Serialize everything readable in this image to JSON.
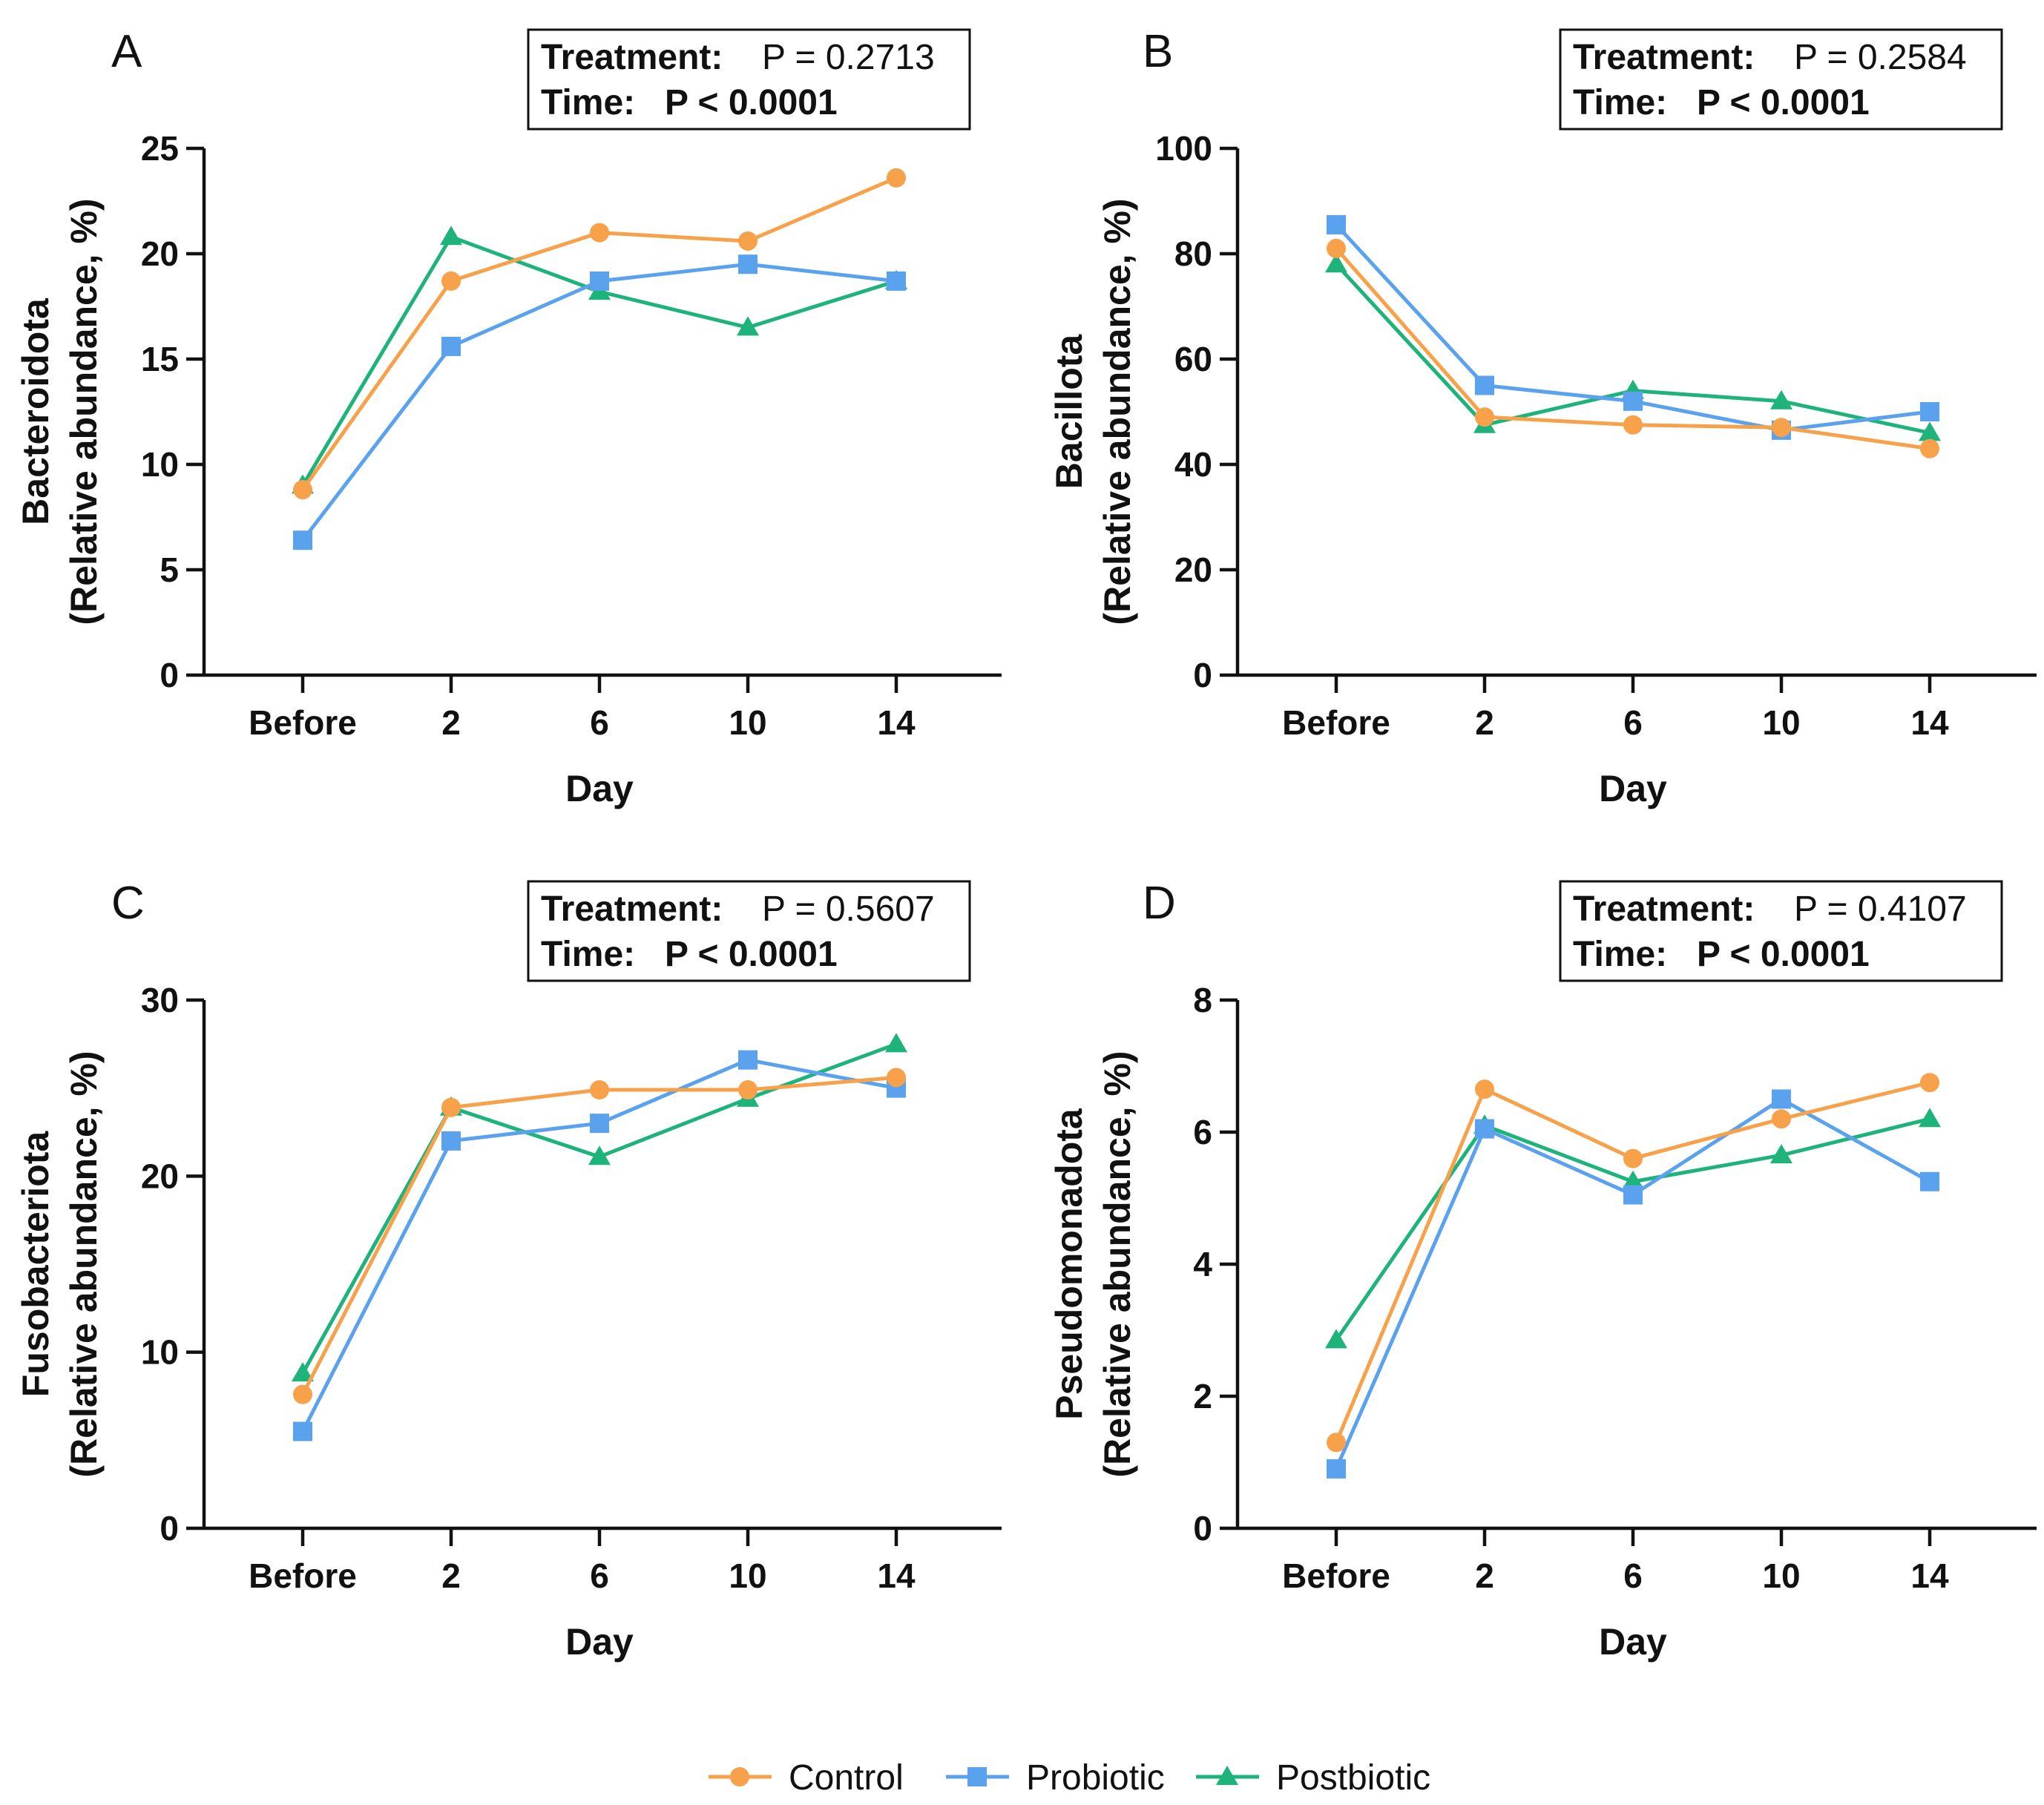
{
  "colors": {
    "Control": "#F7A14A",
    "Probiotic": "#5BA2EE",
    "Postbiotic": "#1DB37B"
  },
  "legend": {
    "items": [
      {
        "name": "Control",
        "marker": "circle"
      },
      {
        "name": "Probiotic",
        "marker": "square"
      },
      {
        "name": "Postbiotic",
        "marker": "triangle"
      }
    ]
  },
  "chart_data": [
    {
      "panel": "A",
      "type": "line",
      "categories": [
        "Before",
        "2",
        "6",
        "10",
        "14"
      ],
      "xlabel": "Day",
      "ylabel": "Bacteroidota",
      "ylabel2": "(Relative abundance,  %)",
      "ylim": [
        0,
        25
      ],
      "yticks": [
        0,
        5,
        10,
        15,
        20,
        25
      ],
      "stats": {
        "treatment_label": "Treatment:",
        "treatment_p": "P = 0.2713",
        "time_label": "Time:",
        "time_p": "P < 0.0001"
      },
      "series": [
        {
          "name": "Control",
          "values": [
            8.8,
            18.7,
            21.0,
            20.6,
            23.6
          ]
        },
        {
          "name": "Probiotic",
          "values": [
            6.4,
            15.6,
            18.7,
            19.5,
            18.7
          ]
        },
        {
          "name": "Postbiotic",
          "values": [
            9.0,
            20.8,
            18.2,
            16.5,
            18.7
          ]
        }
      ]
    },
    {
      "panel": "B",
      "type": "line",
      "categories": [
        "Before",
        "2",
        "6",
        "10",
        "14"
      ],
      "xlabel": "Day",
      "ylabel": "Bacillota",
      "ylabel2": "(Relative abundance,  %)",
      "ylim": [
        0,
        100
      ],
      "yticks": [
        0,
        20,
        40,
        60,
        80,
        100
      ],
      "stats": {
        "treatment_label": "Treatment:",
        "treatment_p": "P = 0.2584",
        "time_label": "Time:",
        "time_p": "P < 0.0001"
      },
      "series": [
        {
          "name": "Control",
          "values": [
            81.0,
            49.0,
            47.5,
            47.0,
            43.0
          ]
        },
        {
          "name": "Probiotic",
          "values": [
            85.5,
            55.0,
            52.0,
            46.5,
            50.0
          ]
        },
        {
          "name": "Postbiotic",
          "values": [
            78.0,
            47.5,
            54.0,
            52.0,
            46.0
          ]
        }
      ]
    },
    {
      "panel": "C",
      "type": "line",
      "categories": [
        "Before",
        "2",
        "6",
        "10",
        "14"
      ],
      "xlabel": "Day",
      "ylabel": "Fusobacteriota",
      "ylabel2": "(Relative abundance,  %)",
      "ylim": [
        0,
        30
      ],
      "yticks": [
        0,
        10,
        20,
        30
      ],
      "stats": {
        "treatment_label": "Treatment:",
        "treatment_p": "P = 0.5607",
        "time_label": "Time:",
        "time_p": "P < 0.0001"
      },
      "series": [
        {
          "name": "Control",
          "values": [
            7.6,
            23.9,
            24.9,
            24.9,
            25.6
          ]
        },
        {
          "name": "Probiotic",
          "values": [
            5.5,
            22.0,
            23.0,
            26.6,
            25.0
          ]
        },
        {
          "name": "Postbiotic",
          "values": [
            8.8,
            23.9,
            21.1,
            24.4,
            27.5
          ]
        }
      ]
    },
    {
      "panel": "D",
      "type": "line",
      "categories": [
        "Before",
        "2",
        "6",
        "10",
        "14"
      ],
      "xlabel": "Day",
      "ylabel": "Pseudomonadota",
      "ylabel2": "(Relative abundance,  %)",
      "ylim": [
        0,
        8
      ],
      "yticks": [
        0,
        2,
        4,
        6,
        8
      ],
      "stats": {
        "treatment_label": "Treatment:",
        "treatment_p": "P = 0.4107",
        "time_label": "Time:",
        "time_p": "P < 0.0001"
      },
      "series": [
        {
          "name": "Control",
          "values": [
            1.3,
            6.65,
            5.6,
            6.2,
            6.75
          ]
        },
        {
          "name": "Probiotic",
          "values": [
            0.9,
            6.05,
            5.05,
            6.5,
            5.25
          ]
        },
        {
          "name": "Postbiotic",
          "values": [
            2.85,
            6.1,
            5.25,
            5.65,
            6.2
          ]
        }
      ]
    }
  ]
}
